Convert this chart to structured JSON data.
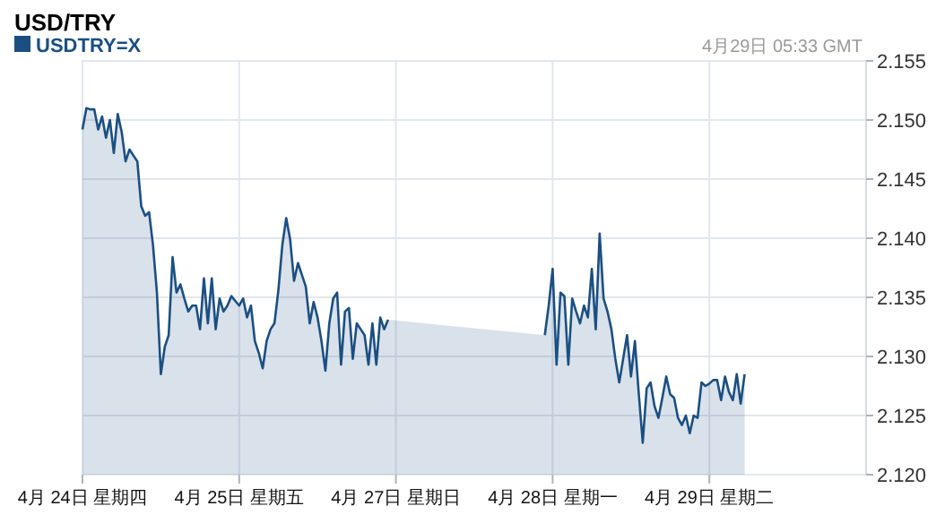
{
  "chart_data": {
    "type": "area",
    "title": "USD/TRY",
    "annotations": [
      "4月29日 05:33 GMT"
    ],
    "legend": "top left",
    "grid": true,
    "marker": "none",
    "line_style": "solid",
    "categories": [
      "4月 24日 星期四",
      null,
      null,
      null,
      null,
      null,
      null,
      null,
      null,
      null,
      null,
      null,
      null,
      null,
      null,
      null,
      null,
      null,
      null,
      null,
      null,
      null,
      null,
      null,
      null,
      null,
      null,
      null,
      null,
      null,
      null,
      null,
      null,
      null,
      null,
      null,
      null,
      null,
      null,
      null,
      "4月 25日 星期五",
      null,
      null,
      null,
      null,
      null,
      null,
      null,
      null,
      null,
      null,
      null,
      null,
      null,
      null,
      null,
      null,
      null,
      null,
      null,
      null,
      null,
      null,
      null,
      null,
      null,
      null,
      null,
      null,
      null,
      null,
      null,
      null,
      null,
      null,
      null,
      null,
      null,
      null,
      null,
      "4月 27日 星期日",
      null,
      null,
      null,
      null,
      null,
      null,
      null,
      null,
      null,
      null,
      null,
      null,
      null,
      null,
      null,
      null,
      null,
      null,
      null,
      null,
      null,
      null,
      null,
      null,
      null,
      null,
      null,
      null,
      null,
      null,
      null,
      null,
      null,
      null,
      null,
      null,
      null,
      null,
      null,
      "4月 28日 星期一",
      null,
      null,
      null,
      null,
      null,
      null,
      null,
      null,
      null,
      null,
      null,
      null,
      null,
      null,
      null,
      null,
      null,
      null,
      null,
      null,
      null,
      null,
      null,
      null,
      null,
      null,
      null,
      null,
      null,
      null,
      null,
      null,
      null,
      null,
      null,
      null,
      null,
      null,
      null,
      "4月 29日 星期二",
      null,
      null,
      null,
      null,
      null,
      null,
      null,
      null,
      null,
      null,
      null,
      null,
      null,
      null,
      null,
      null,
      null,
      null,
      null,
      null,
      null,
      null,
      null,
      null,
      null,
      null,
      null,
      null,
      null,
      null,
      null,
      null,
      null,
      null,
      null,
      null,
      null,
      null,
      null
    ],
    "ylim": [
      2.12,
      2.155
    ],
    "yticks": [
      {
        "value": 2.12,
        "label": "2.120"
      },
      {
        "value": 2.125,
        "label": "2.125"
      },
      {
        "value": 2.13,
        "label": "2.130"
      },
      {
        "value": 2.135,
        "label": "2.135"
      },
      {
        "value": 2.14,
        "label": "2.140"
      },
      {
        "value": 2.145,
        "label": "2.145"
      },
      {
        "value": 2.15,
        "label": "2.150"
      },
      {
        "value": 2.155,
        "label": "2.155"
      }
    ],
    "series": [
      {
        "name": "USDTRY=X",
        "color": "#1b4f82",
        "values": [
          2.1492,
          2.151,
          2.1509,
          2.1509,
          2.1492,
          2.1503,
          2.1485,
          2.15,
          2.1472,
          2.1505,
          2.149,
          2.1465,
          2.1475,
          2.147,
          2.1465,
          2.1427,
          2.1419,
          2.1422,
          2.1394,
          2.1354,
          2.1285,
          2.1308,
          2.1318,
          2.1384,
          2.1354,
          2.1361,
          2.1349,
          2.1338,
          2.1343,
          2.1343,
          2.1323,
          2.1366,
          2.1328,
          2.1366,
          2.1323,
          2.1349,
          2.1338,
          2.1343,
          2.1351,
          2.1347,
          2.1343,
          2.1349,
          2.1333,
          2.1343,
          2.1313,
          2.1303,
          2.129,
          2.1313,
          2.1323,
          2.1328,
          2.1356,
          2.1394,
          2.1417,
          2.1399,
          2.1364,
          2.1379,
          2.1369,
          2.1359,
          2.1328,
          2.1346,
          2.1333,
          2.1313,
          2.1288,
          2.1328,
          2.1349,
          2.1354,
          2.1293,
          2.1338,
          2.1341,
          2.1298,
          2.1328,
          2.1323,
          2.1318,
          2.1293,
          2.1328,
          2.1293,
          2.1333,
          2.1323,
          2.1331,
          null,
          null,
          null,
          null,
          null,
          null,
          null,
          null,
          null,
          null,
          null,
          null,
          null,
          null,
          null,
          null,
          null,
          null,
          null,
          null,
          null,
          null,
          null,
          null,
          null,
          null,
          null,
          null,
          null,
          null,
          null,
          null,
          null,
          null,
          null,
          null,
          null,
          null,
          null,
          2.1318,
          2.1343,
          2.1374,
          2.1293,
          2.1354,
          2.1351,
          2.1293,
          2.1349,
          2.1338,
          2.1328,
          2.1343,
          2.1333,
          2.1374,
          2.1323,
          2.1404,
          2.1349,
          2.1338,
          2.1323,
          2.1298,
          2.1278,
          2.1298,
          2.1318,
          2.1283,
          2.1313,
          2.1268,
          2.1227,
          2.1273,
          2.1278,
          2.1258,
          2.1248,
          2.1265,
          2.1283,
          2.1268,
          2.1265,
          2.1248,
          2.1242,
          2.125,
          2.1235,
          2.125,
          2.1248,
          2.1278,
          2.1275,
          2.1277,
          2.128,
          2.128,
          2.1263,
          2.1283,
          2.127,
          2.1263,
          2.1285,
          2.126,
          2.1285,
          null,
          null,
          null,
          null,
          null,
          null,
          null,
          null,
          null,
          null,
          null,
          null,
          null,
          null,
          null,
          null,
          null,
          null,
          null,
          null,
          null,
          null,
          null,
          null,
          null,
          null,
          null,
          null,
          null,
          null
        ]
      }
    ]
  }
}
